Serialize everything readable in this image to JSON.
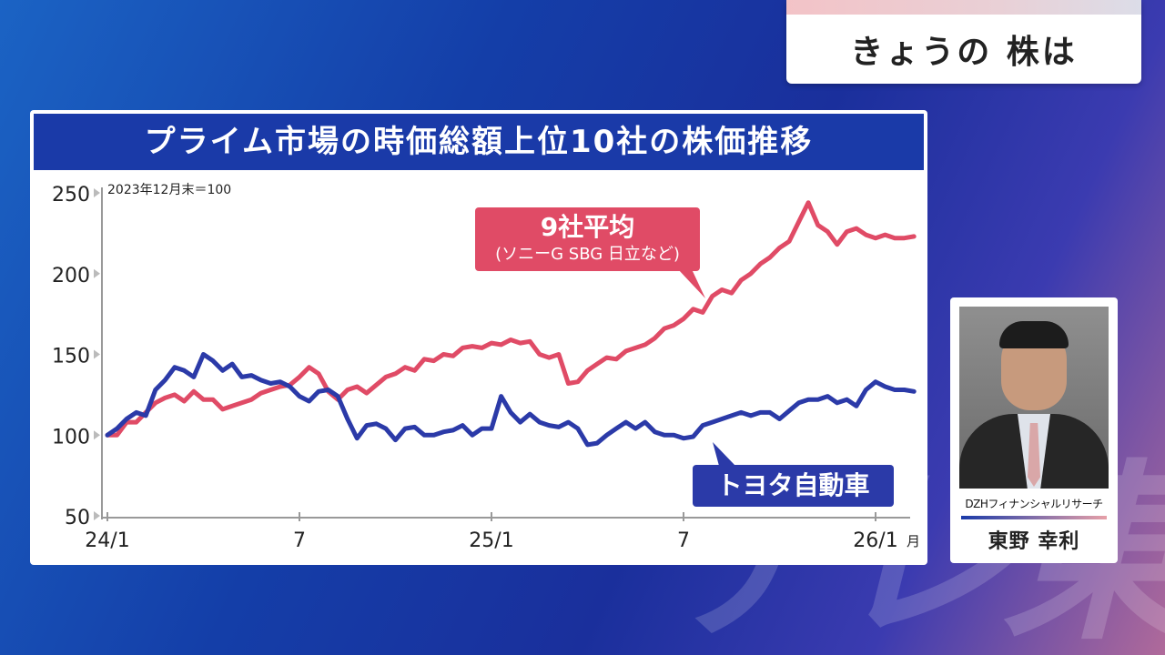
{
  "corner_label": "きょうの 株は",
  "watermark": "テレ東",
  "panel_title": "プライム市場の時価総額上位10社の株価推移",
  "base_note": "2023年12月末＝100",
  "colors": {
    "avg9": "#e04b66",
    "toyota": "#2b3aa8",
    "header": "#1a3aa8"
  },
  "callouts": {
    "avg9_title": "9社平均",
    "avg9_sub": "(ソニーG SBG 日立など)",
    "toyota": "トヨタ自動車"
  },
  "profile": {
    "company": "DZHフィナンシャルリサーチ",
    "name": "東野 幸利",
    "photo_icon": "person-photo"
  },
  "chart_data": {
    "type": "line",
    "title": "プライム市場の時価総額上位10社の株価推移",
    "note": "2023年12月末＝100",
    "xlabel": "",
    "ylabel": "",
    "ylim": [
      50,
      250
    ],
    "yticks": [
      50,
      100,
      150,
      200,
      250
    ],
    "ytick_labels": [
      "50",
      "100",
      "150",
      "200",
      "250"
    ],
    "xlim": [
      0,
      25.4
    ],
    "xticks": [
      0,
      6,
      12,
      18,
      24
    ],
    "xtick_labels": [
      "24/1",
      "7",
      "25/1",
      "7",
      "26/1"
    ],
    "x_unit": "月",
    "grid": false,
    "series": [
      {
        "name": "9社平均",
        "color": "#e04b66",
        "x": [
          0,
          0.3,
          0.6,
          0.9,
          1.2,
          1.5,
          1.8,
          2.1,
          2.4,
          2.7,
          3.0,
          3.3,
          3.6,
          3.9,
          4.2,
          4.5,
          4.8,
          5.1,
          5.4,
          5.7,
          6.0,
          6.3,
          6.6,
          6.9,
          7.2,
          7.5,
          7.8,
          8.1,
          8.4,
          8.7,
          9.0,
          9.3,
          9.6,
          9.9,
          10.2,
          10.5,
          10.8,
          11.1,
          11.4,
          11.7,
          12.0,
          12.3,
          12.6,
          12.9,
          13.2,
          13.5,
          13.8,
          14.1,
          14.4,
          14.7,
          15.0,
          15.3,
          15.6,
          15.9,
          16.2,
          16.5,
          16.8,
          17.1,
          17.4,
          17.7,
          18.0,
          18.3,
          18.6,
          18.9,
          19.2,
          19.5,
          19.8,
          20.1,
          20.4,
          20.7,
          21.0,
          21.3,
          21.6,
          21.9,
          22.2,
          22.5,
          22.8,
          23.1,
          23.4,
          23.7,
          24.0,
          24.3,
          24.6,
          24.9,
          25.2
        ],
        "values": [
          100,
          100,
          108,
          108,
          114,
          120,
          123,
          125,
          121,
          127,
          122,
          122,
          116,
          118,
          120,
          122,
          126,
          128,
          130,
          131,
          136,
          142,
          138,
          127,
          122,
          128,
          130,
          126,
          131,
          136,
          138,
          142,
          140,
          147,
          146,
          150,
          149,
          154,
          155,
          154,
          157,
          156,
          159,
          157,
          158,
          150,
          148,
          150,
          132,
          133,
          140,
          144,
          148,
          147,
          152,
          154,
          156,
          160,
          166,
          168,
          172,
          178,
          176,
          186,
          190,
          188,
          196,
          200,
          206,
          210,
          216,
          220,
          232,
          244,
          230,
          226,
          218,
          226,
          228,
          224,
          222,
          224,
          222,
          222,
          223
        ]
      },
      {
        "name": "トヨタ自動車",
        "color": "#2b3aa8",
        "x": [
          0,
          0.3,
          0.6,
          0.9,
          1.2,
          1.5,
          1.8,
          2.1,
          2.4,
          2.7,
          3.0,
          3.3,
          3.6,
          3.9,
          4.2,
          4.5,
          4.8,
          5.1,
          5.4,
          5.7,
          6.0,
          6.3,
          6.6,
          6.9,
          7.2,
          7.5,
          7.8,
          8.1,
          8.4,
          8.7,
          9.0,
          9.3,
          9.6,
          9.9,
          10.2,
          10.5,
          10.8,
          11.1,
          11.4,
          11.7,
          12.0,
          12.3,
          12.6,
          12.9,
          13.2,
          13.5,
          13.8,
          14.1,
          14.4,
          14.7,
          15.0,
          15.3,
          15.6,
          15.9,
          16.2,
          16.5,
          16.8,
          17.1,
          17.4,
          17.7,
          18.0,
          18.3,
          18.6,
          18.9,
          19.2,
          19.5,
          19.8,
          20.1,
          20.4,
          20.7,
          21.0,
          21.3,
          21.6,
          21.9,
          22.2,
          22.5,
          22.8,
          23.1,
          23.4,
          23.7,
          24.0,
          24.3,
          24.6,
          24.9,
          25.2
        ],
        "values": [
          100,
          104,
          110,
          114,
          112,
          128,
          134,
          142,
          140,
          136,
          150,
          146,
          140,
          144,
          136,
          137,
          134,
          132,
          133,
          130,
          124,
          121,
          127,
          128,
          124,
          110,
          98,
          106,
          107,
          104,
          97,
          104,
          105,
          100,
          100,
          102,
          103,
          106,
          100,
          104,
          104,
          124,
          114,
          108,
          113,
          108,
          106,
          105,
          108,
          104,
          94,
          95,
          100,
          104,
          108,
          104,
          108,
          102,
          100,
          100,
          98,
          99,
          106,
          108,
          110,
          112,
          114,
          112,
          114,
          114,
          110,
          115,
          120,
          122,
          122,
          124,
          120,
          122,
          118,
          128,
          133,
          130,
          128,
          128,
          127
        ]
      }
    ]
  }
}
